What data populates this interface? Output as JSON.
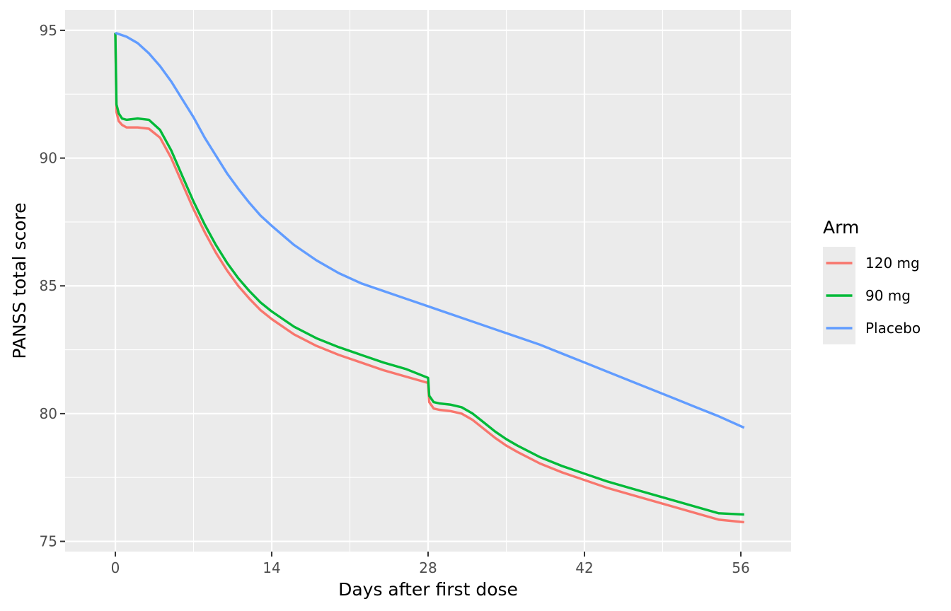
{
  "chart_data": {
    "type": "line",
    "xlabel": "Days after first dose",
    "ylabel": "PANSS total score",
    "xlim": [
      -4.5,
      60.5
    ],
    "ylim": [
      74.6,
      95.8
    ],
    "x_ticks": [
      0,
      14,
      28,
      42,
      56
    ],
    "y_ticks": [
      75,
      80,
      85,
      90,
      95
    ],
    "grid": true,
    "legend": {
      "title": "Arm",
      "position": "right"
    },
    "series": [
      {
        "name": "120 mg",
        "color": "#F8766D",
        "points": [
          [
            0,
            94.9
          ],
          [
            0.1,
            91.8
          ],
          [
            0.3,
            91.45
          ],
          [
            0.6,
            91.3
          ],
          [
            1,
            91.2
          ],
          [
            2,
            91.2
          ],
          [
            3,
            91.15
          ],
          [
            4,
            90.8
          ],
          [
            5,
            90.0
          ],
          [
            6,
            89.0
          ],
          [
            7,
            88.0
          ],
          [
            8,
            87.1
          ],
          [
            9,
            86.3
          ],
          [
            10,
            85.6
          ],
          [
            11,
            85.0
          ],
          [
            12,
            84.5
          ],
          [
            13,
            84.05
          ],
          [
            14,
            83.7
          ],
          [
            16,
            83.1
          ],
          [
            18,
            82.65
          ],
          [
            20,
            82.3
          ],
          [
            22,
            82.0
          ],
          [
            24,
            81.7
          ],
          [
            26,
            81.45
          ],
          [
            28,
            81.2
          ],
          [
            28.1,
            80.45
          ],
          [
            28.5,
            80.2
          ],
          [
            29,
            80.15
          ],
          [
            30,
            80.1
          ],
          [
            31,
            80.0
          ],
          [
            32,
            79.75
          ],
          [
            33,
            79.4
          ],
          [
            34,
            79.05
          ],
          [
            35,
            78.75
          ],
          [
            36,
            78.5
          ],
          [
            38,
            78.05
          ],
          [
            40,
            77.7
          ],
          [
            42,
            77.4
          ],
          [
            44,
            77.1
          ],
          [
            46,
            76.85
          ],
          [
            48,
            76.6
          ],
          [
            50,
            76.35
          ],
          [
            52,
            76.1
          ],
          [
            54,
            75.85
          ],
          [
            56.3,
            75.75
          ]
        ]
      },
      {
        "name": "90 mg",
        "color": "#00BA38",
        "points": [
          [
            0,
            94.9
          ],
          [
            0.1,
            92.1
          ],
          [
            0.3,
            91.75
          ],
          [
            0.6,
            91.55
          ],
          [
            1,
            91.5
          ],
          [
            2,
            91.55
          ],
          [
            3,
            91.5
          ],
          [
            4,
            91.1
          ],
          [
            5,
            90.3
          ],
          [
            6,
            89.3
          ],
          [
            7,
            88.3
          ],
          [
            8,
            87.4
          ],
          [
            9,
            86.6
          ],
          [
            10,
            85.9
          ],
          [
            11,
            85.3
          ],
          [
            12,
            84.8
          ],
          [
            13,
            84.35
          ],
          [
            14,
            84.0
          ],
          [
            16,
            83.4
          ],
          [
            18,
            82.95
          ],
          [
            20,
            82.6
          ],
          [
            22,
            82.3
          ],
          [
            24,
            82.0
          ],
          [
            26,
            81.75
          ],
          [
            28,
            81.4
          ],
          [
            28.1,
            80.7
          ],
          [
            28.5,
            80.45
          ],
          [
            29,
            80.4
          ],
          [
            30,
            80.35
          ],
          [
            31,
            80.25
          ],
          [
            32,
            80.0
          ],
          [
            33,
            79.65
          ],
          [
            34,
            79.3
          ],
          [
            35,
            79.0
          ],
          [
            36,
            78.75
          ],
          [
            38,
            78.3
          ],
          [
            40,
            77.95
          ],
          [
            42,
            77.65
          ],
          [
            44,
            77.35
          ],
          [
            46,
            77.1
          ],
          [
            48,
            76.85
          ],
          [
            50,
            76.6
          ],
          [
            52,
            76.35
          ],
          [
            54,
            76.1
          ],
          [
            56.3,
            76.05
          ]
        ]
      },
      {
        "name": "Placebo",
        "color": "#619CFF",
        "points": [
          [
            0,
            94.9
          ],
          [
            1,
            94.75
          ],
          [
            2,
            94.5
          ],
          [
            3,
            94.1
          ],
          [
            4,
            93.6
          ],
          [
            5,
            93.0
          ],
          [
            6,
            92.3
          ],
          [
            7,
            91.6
          ],
          [
            8,
            90.8
          ],
          [
            9,
            90.1
          ],
          [
            10,
            89.4
          ],
          [
            11,
            88.8
          ],
          [
            12,
            88.25
          ],
          [
            13,
            87.75
          ],
          [
            14,
            87.35
          ],
          [
            16,
            86.6
          ],
          [
            18,
            86.0
          ],
          [
            20,
            85.5
          ],
          [
            22,
            85.1
          ],
          [
            24,
            84.8
          ],
          [
            26,
            84.5
          ],
          [
            28,
            84.2
          ],
          [
            30,
            83.9
          ],
          [
            32,
            83.6
          ],
          [
            34,
            83.3
          ],
          [
            36,
            83.0
          ],
          [
            38,
            82.7
          ],
          [
            40,
            82.35
          ],
          [
            42,
            82.0
          ],
          [
            44,
            81.65
          ],
          [
            46,
            81.3
          ],
          [
            48,
            80.95
          ],
          [
            50,
            80.6
          ],
          [
            52,
            80.25
          ],
          [
            54,
            79.9
          ],
          [
            56.3,
            79.45
          ]
        ]
      }
    ]
  }
}
